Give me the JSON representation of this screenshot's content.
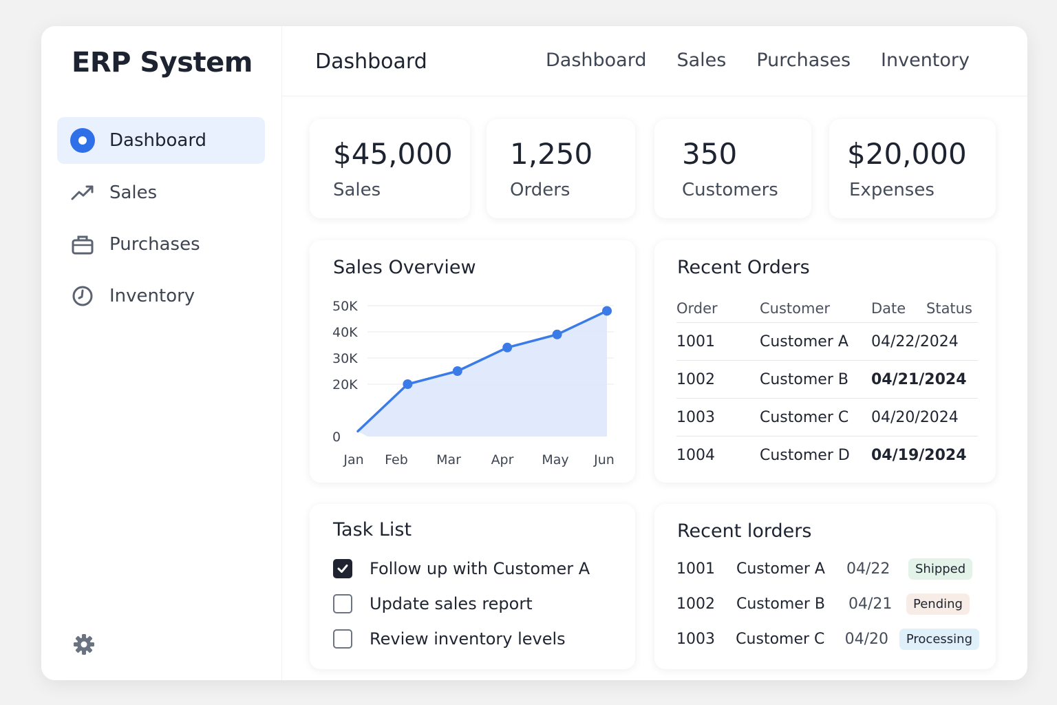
{
  "app": {
    "title": "ERP System"
  },
  "sidebar": {
    "items": [
      {
        "label": "Dashboard",
        "icon": "dashboard-icon",
        "active": true
      },
      {
        "label": "Sales",
        "icon": "trending-up-icon"
      },
      {
        "label": "Purchases",
        "icon": "briefcase-icon"
      },
      {
        "label": "Inventory",
        "icon": "clock-icon"
      }
    ],
    "settings_icon": "gear-icon"
  },
  "header": {
    "title": "Dashboard",
    "nav": [
      "Dashboard",
      "Sales",
      "Purchases",
      "Inventory"
    ]
  },
  "stats": [
    {
      "value": "$45,000",
      "label": "Sales"
    },
    {
      "value": "1,250",
      "label": "Orders"
    },
    {
      "value": "350",
      "label": "Customers"
    },
    {
      "value": "$20,000",
      "label": "Expenses"
    }
  ],
  "sales_overview": {
    "title": "Sales Overview",
    "chart_data": {
      "type": "area",
      "title": "Sales Overview",
      "categories": [
        "Jan",
        "Feb",
        "Mar",
        "Apr",
        "May",
        "Jun"
      ],
      "values": [
        2000,
        20000,
        25000,
        34000,
        39000,
        48000
      ],
      "yticks": [
        "0",
        "20K",
        "30K",
        "40K",
        "50K"
      ],
      "ytick_values": [
        0,
        20000,
        30000,
        40000,
        50000
      ],
      "ylim": [
        0,
        50000
      ],
      "grid": true,
      "color": "#3b7be8"
    }
  },
  "recent_orders": {
    "title": "Recent Orders",
    "columns": [
      "Order",
      "Customer",
      "Date",
      "Status"
    ],
    "rows": [
      {
        "order": "1001",
        "customer": "Customer A",
        "date": "04/22/2024",
        "bold": false
      },
      {
        "order": "1002",
        "customer": "Customer B",
        "date": "04/21/2024",
        "bold": true
      },
      {
        "order": "1003",
        "customer": "Customer C",
        "date": "04/20/2024",
        "bold": false
      },
      {
        "order": "1004",
        "customer": "Customer D",
        "date": "04/19/2024",
        "bold": true
      }
    ]
  },
  "tasks": {
    "title": "Task List",
    "items": [
      {
        "text": "Follow up with Customer A",
        "checked": true
      },
      {
        "text": "Update sales report",
        "checked": false
      },
      {
        "text": "Review inventory levels",
        "checked": false
      }
    ]
  },
  "recent_lorders": {
    "title": "Recent lorders",
    "rows": [
      {
        "order": "1001",
        "customer": "Customer A",
        "date": "04/22",
        "status": "Shipped",
        "bg": "#e3f3ea",
        "fg": "#1f2430"
      },
      {
        "order": "1002",
        "customer": "Customer B",
        "date": "04/21",
        "status": "Pending",
        "bg": "#f8ede6",
        "fg": "#1f2430"
      },
      {
        "order": "1003",
        "customer": "Customer C",
        "date": "04/20",
        "status": "Processing",
        "bg": "#dff0fb",
        "fg": "#1f2430"
      }
    ]
  }
}
